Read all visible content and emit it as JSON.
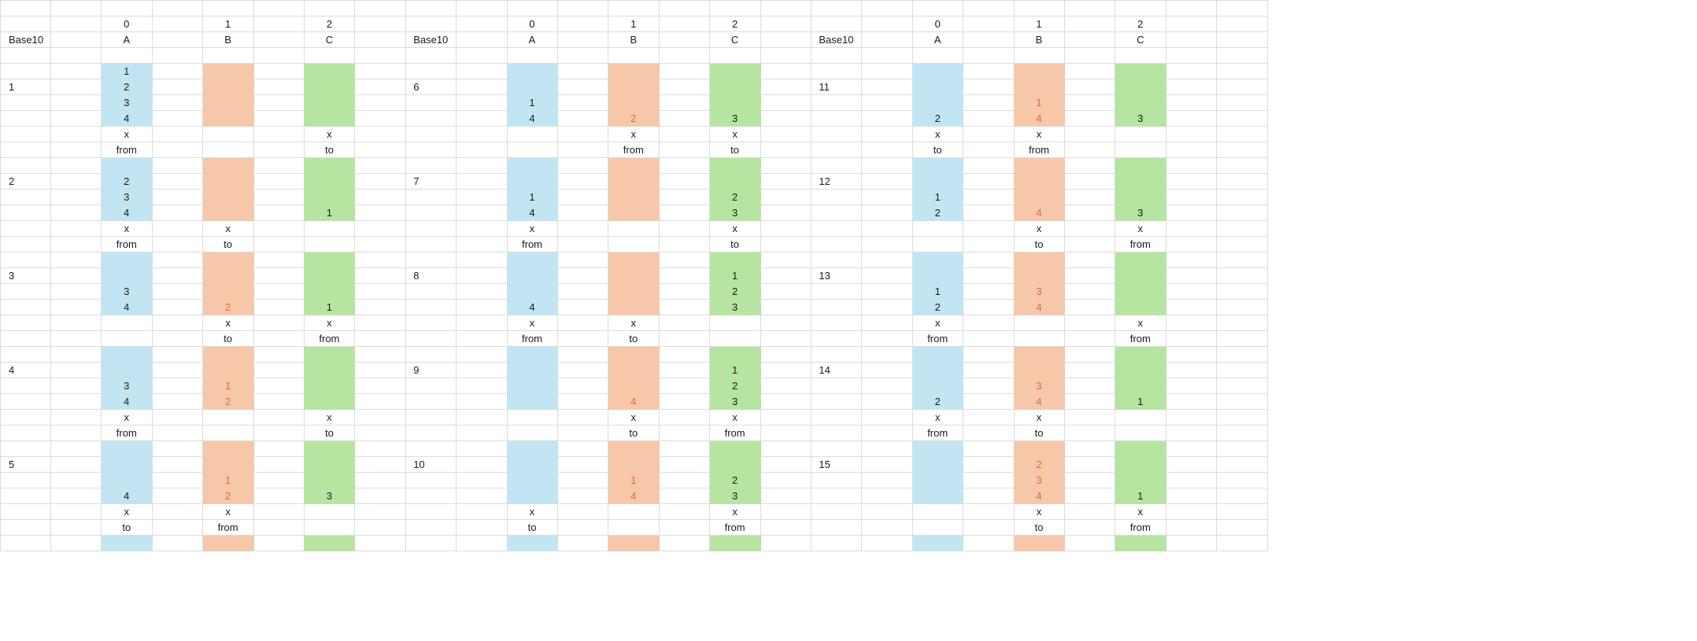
{
  "sheet": {
    "colors": {
      "tower_a": "#c2e5f4",
      "tower_b": "#f7c7aa",
      "tower_c": "#b6e5a2",
      "text": "#1a1a1a",
      "orange_text": "#e86a2a",
      "grid": "#dcdcdc"
    },
    "header_row1": [
      "",
      "",
      "0",
      "",
      "1",
      "",
      "2",
      "",
      "",
      "",
      "0",
      "",
      "1",
      "",
      "2",
      "",
      "",
      "",
      "0",
      "",
      "1",
      "",
      "2",
      "",
      ""
    ],
    "header_row2": [
      "Base10",
      "",
      "A",
      "",
      "B",
      "",
      "C",
      "",
      "Base10",
      "",
      "A",
      "",
      "B",
      "",
      "C",
      "",
      "Base10",
      "",
      "A",
      "",
      "B",
      "",
      "C",
      "",
      ""
    ],
    "blocks": [
      [
        {
          "label": "1",
          "A": [
            "1",
            "2",
            "3",
            "4"
          ],
          "B": [
            "",
            "",
            "",
            ""
          ],
          "C": [
            "",
            "",
            "",
            ""
          ],
          "marks": [
            "x",
            "",
            "x"
          ],
          "roles": [
            "from",
            "",
            "to"
          ]
        },
        {
          "label": "6",
          "A": [
            "",
            "",
            "1",
            "4"
          ],
          "B": [
            "",
            "",
            "",
            "2"
          ],
          "C": [
            "",
            "",
            "",
            "3"
          ],
          "marks": [
            "",
            "x",
            "x"
          ],
          "roles": [
            "",
            "from",
            "to"
          ]
        },
        {
          "label": "11",
          "A": [
            "",
            "",
            "",
            "2"
          ],
          "B": [
            "",
            "",
            "1",
            "4"
          ],
          "C": [
            "",
            "",
            "",
            "3"
          ],
          "marks": [
            "x",
            "x",
            ""
          ],
          "roles": [
            "to",
            "from",
            ""
          ]
        }
      ],
      [
        {
          "label": "2",
          "A": [
            "",
            "2",
            "3",
            "4"
          ],
          "B": [
            "",
            "",
            "",
            ""
          ],
          "C": [
            "",
            "",
            "",
            "1"
          ],
          "marks": [
            "x",
            "x",
            ""
          ],
          "roles": [
            "from",
            "to",
            ""
          ]
        },
        {
          "label": "7",
          "A": [
            "",
            "",
            "1",
            "4"
          ],
          "B": [
            "",
            "",
            "",
            ""
          ],
          "C": [
            "",
            "",
            "2",
            "3"
          ],
          "marks": [
            "x",
            "",
            "x"
          ],
          "roles": [
            "from",
            "",
            "to"
          ]
        },
        {
          "label": "12",
          "A": [
            "",
            "",
            "1",
            "2"
          ],
          "B": [
            "",
            "",
            "",
            "4"
          ],
          "C": [
            "",
            "",
            "",
            "3"
          ],
          "marks": [
            "",
            "x",
            "x"
          ],
          "roles": [
            "",
            "to",
            "from"
          ]
        }
      ],
      [
        {
          "label": "3",
          "A": [
            "",
            "",
            "3",
            "4"
          ],
          "B": [
            "",
            "",
            "",
            "2"
          ],
          "C": [
            "",
            "",
            "",
            "1"
          ],
          "marks": [
            "",
            "x",
            "x"
          ],
          "roles": [
            "",
            "to",
            "from"
          ]
        },
        {
          "label": "8",
          "A": [
            "",
            "",
            "",
            "4"
          ],
          "B": [
            "",
            "",
            "",
            ""
          ],
          "C": [
            "",
            "1",
            "2",
            "3"
          ],
          "marks": [
            "x",
            "x",
            ""
          ],
          "roles": [
            "from",
            "to",
            ""
          ]
        },
        {
          "label": "13",
          "A": [
            "",
            "",
            "1",
            "2"
          ],
          "B": [
            "",
            "",
            "3",
            "4"
          ],
          "C": [
            "",
            "",
            "",
            ""
          ],
          "marks": [
            "x",
            "",
            "x"
          ],
          "roles": [
            "from",
            "",
            "from"
          ]
        }
      ],
      [
        {
          "label": "4",
          "A": [
            "",
            "",
            "3",
            "4"
          ],
          "B": [
            "",
            "",
            "1",
            "2"
          ],
          "C": [
            "",
            "",
            "",
            ""
          ],
          "marks": [
            "x",
            "",
            "x"
          ],
          "roles": [
            "from",
            "",
            "to"
          ]
        },
        {
          "label": "9",
          "A": [
            "",
            "",
            "",
            ""
          ],
          "B": [
            "",
            "",
            "",
            "4"
          ],
          "C": [
            "",
            "1",
            "2",
            "3"
          ],
          "marks": [
            "",
            "x",
            "x"
          ],
          "roles": [
            "",
            "to",
            "from"
          ]
        },
        {
          "label": "14",
          "A": [
            "",
            "",
            "",
            "2"
          ],
          "B": [
            "",
            "",
            "3",
            "4"
          ],
          "C": [
            "",
            "",
            "",
            "1"
          ],
          "marks": [
            "x",
            "x",
            ""
          ],
          "roles": [
            "from",
            "to",
            ""
          ]
        }
      ],
      [
        {
          "label": "5",
          "A": [
            "",
            "",
            "",
            "4"
          ],
          "B": [
            "",
            "",
            "1",
            "2"
          ],
          "C": [
            "",
            "",
            "",
            "3"
          ],
          "marks": [
            "x",
            "x",
            ""
          ],
          "roles": [
            "to",
            "from",
            ""
          ]
        },
        {
          "label": "10",
          "A": [
            "",
            "",
            "",
            ""
          ],
          "B": [
            "",
            "",
            "1",
            "4"
          ],
          "C": [
            "",
            "",
            "2",
            "3"
          ],
          "marks": [
            "x",
            "",
            "x"
          ],
          "roles": [
            "to",
            "",
            "from"
          ]
        },
        {
          "label": "15",
          "A": [
            "",
            "",
            "",
            ""
          ],
          "B": [
            "",
            "2",
            "3",
            "4"
          ],
          "C": [
            "",
            "",
            "",
            "1"
          ],
          "marks": [
            "",
            "x",
            "x"
          ],
          "roles": [
            "",
            "to",
            "from"
          ]
        }
      ]
    ]
  }
}
